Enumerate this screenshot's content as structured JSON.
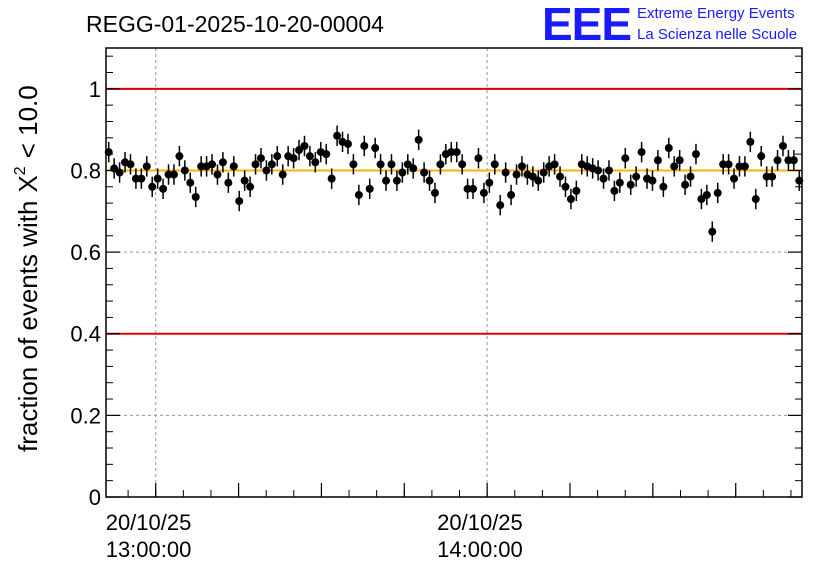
{
  "title": "REGG-01-2025-10-20-00004",
  "logo": {
    "mark": "EEE",
    "line1": "Extreme Energy Events",
    "line2": "La Scienza nelle Scuole",
    "color": "#1a1aff"
  },
  "chart_data": {
    "type": "scatter",
    "ylabel": "fraction of events with",
    "ylabel_math": {
      "symbol": "X",
      "superscript": "2",
      "condition": "< 10.0"
    },
    "ylim": [
      0,
      1.1
    ],
    "yticks": [
      {
        "value": 0,
        "label": "0"
      },
      {
        "value": 0.2,
        "label": "0.2"
      },
      {
        "value": 0.4,
        "label": "0.4"
      },
      {
        "value": 0.6,
        "label": "0.6"
      },
      {
        "value": 0.8,
        "label": "0.8"
      },
      {
        "value": 1,
        "label": "1"
      }
    ],
    "x_range": [
      "2025-10-20 12:51",
      "2025-10-20 14:57"
    ],
    "xticks": [
      {
        "time": "2025-10-20 13:00",
        "date_label": "20/10/25",
        "time_label": "13:00:00"
      },
      {
        "time": "2025-10-20 14:00",
        "date_label": "20/10/25",
        "time_label": "14:00:00"
      }
    ],
    "reference_lines": [
      {
        "y": 1.0,
        "color": "#e00000"
      },
      {
        "y": 0.4,
        "color": "#e00000"
      },
      {
        "y": 0.8,
        "color": "#ffb000"
      }
    ],
    "grid": true,
    "marker_color": "#000000",
    "error_bar": 0.025,
    "series": [
      {
        "values": [
          0.845,
          0.805,
          0.795,
          0.82,
          0.815,
          0.78,
          0.78,
          0.81,
          0.76,
          0.78,
          0.755,
          0.79,
          0.79,
          0.835,
          0.8,
          0.77,
          0.735,
          0.81,
          0.81,
          0.815,
          0.79,
          0.82,
          0.77,
          0.81,
          0.725,
          0.775,
          0.76,
          0.815,
          0.83,
          0.8,
          0.815,
          0.835,
          0.79,
          0.835,
          0.83,
          0.85,
          0.86,
          0.835,
          0.82,
          0.845,
          0.84,
          0.78,
          0.885,
          0.87,
          0.865,
          0.815,
          0.74,
          0.86,
          0.755,
          0.855,
          0.815,
          0.775,
          0.815,
          0.775,
          0.795,
          0.815,
          0.805,
          0.875,
          0.795,
          0.775,
          0.745,
          0.815,
          0.84,
          0.845,
          0.845,
          0.815,
          0.755,
          0.755,
          0.83,
          0.745,
          0.77,
          0.815,
          0.715,
          0.795,
          0.74,
          0.79,
          0.81,
          0.79,
          0.785,
          0.775,
          0.795,
          0.81,
          0.815,
          0.785,
          0.76,
          0.73,
          0.75,
          0.815,
          0.81,
          0.805,
          0.8,
          0.78,
          0.8,
          0.75,
          0.77,
          0.83,
          0.765,
          0.785,
          0.845,
          0.78,
          0.775,
          0.825,
          0.76,
          0.855,
          0.81,
          0.825,
          0.765,
          0.785,
          0.84,
          0.73,
          0.74,
          0.65,
          0.745,
          0.815,
          0.815,
          0.78,
          0.81,
          0.81,
          0.87,
          0.73,
          0.835,
          0.785,
          0.785,
          0.825,
          0.86,
          0.825,
          0.825,
          0.775
        ]
      }
    ]
  }
}
